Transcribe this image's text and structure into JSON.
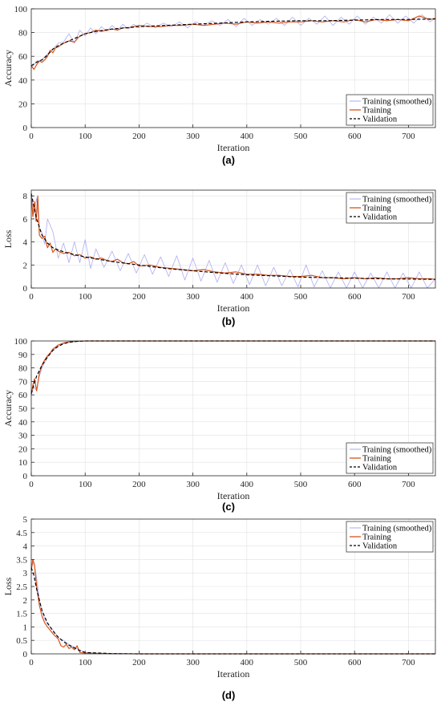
{
  "chart_data": [
    {
      "type": "line",
      "panel": "(a)",
      "xlabel": "Iteration",
      "ylabel": "Accuracy",
      "xlim": [
        0,
        750
      ],
      "ylim": [
        0,
        100
      ],
      "xticks": [
        0,
        100,
        200,
        300,
        400,
        500,
        600,
        700
      ],
      "yticks": [
        0,
        20,
        40,
        60,
        80,
        100
      ],
      "grid": true,
      "legend_position": "bottom-right",
      "series": [
        {
          "name": "Training (smoothed)",
          "color": "#9f9ff0",
          "x": [
            0,
            10,
            20,
            30,
            40,
            50,
            60,
            70,
            80,
            90,
            100,
            110,
            120,
            130,
            140,
            150,
            160,
            170,
            180,
            190,
            200,
            215,
            230,
            245,
            260,
            275,
            290,
            305,
            320,
            335,
            350,
            365,
            380,
            395,
            410,
            425,
            440,
            455,
            470,
            485,
            500,
            515,
            530,
            545,
            560,
            575,
            590,
            605,
            620,
            635,
            650,
            665,
            680,
            695,
            710,
            725,
            740,
            750
          ],
          "y": [
            50,
            56,
            57,
            62,
            66,
            71,
            72,
            79,
            71,
            82,
            77,
            84,
            79,
            85,
            81,
            86,
            82,
            87,
            83,
            87,
            84,
            88,
            84,
            88,
            85,
            89,
            84,
            89,
            86,
            90,
            86,
            91,
            85,
            92,
            86,
            91,
            87,
            92,
            86,
            93,
            86,
            92,
            87,
            94,
            86,
            93,
            87,
            94,
            87,
            93,
            88,
            95,
            88,
            94,
            88,
            95,
            89,
            92
          ]
        },
        {
          "name": "Training",
          "color": "#d95319",
          "x": [
            0,
            5,
            10,
            15,
            20,
            25,
            30,
            35,
            40,
            45,
            50,
            60,
            70,
            80,
            90,
            100,
            110,
            120,
            130,
            140,
            150,
            160,
            170,
            180,
            190,
            200,
            220,
            240,
            260,
            280,
            300,
            320,
            340,
            360,
            380,
            400,
            420,
            440,
            460,
            480,
            500,
            520,
            540,
            560,
            580,
            600,
            620,
            640,
            660,
            680,
            700,
            720,
            740,
            750
          ],
          "y": [
            52,
            49,
            53,
            56,
            55,
            57,
            60,
            65,
            63,
            67,
            68,
            71,
            73,
            72,
            77,
            79,
            80,
            82,
            81,
            82,
            83,
            82,
            84,
            84,
            85,
            86,
            85,
            85,
            86,
            86,
            87,
            86,
            87,
            88,
            87,
            89,
            88,
            89,
            88,
            89,
            89,
            90,
            89,
            90,
            89,
            91,
            89,
            91,
            90,
            91,
            90,
            94,
            91,
            92
          ]
        },
        {
          "name": "Validation",
          "color": "#000000",
          "dashed": true,
          "x": [
            0,
            10,
            20,
            30,
            40,
            50,
            60,
            80,
            100,
            120,
            150,
            200,
            250,
            300,
            350,
            400,
            450,
            500,
            550,
            600,
            650,
            700,
            750
          ],
          "y": [
            52,
            55,
            57,
            61,
            66,
            69,
            71,
            75,
            79,
            81,
            83,
            85,
            86,
            87,
            88,
            89,
            89.5,
            90,
            90,
            90.5,
            91,
            91,
            91.5
          ]
        }
      ]
    },
    {
      "type": "line",
      "panel": "(b)",
      "xlabel": "Iteration",
      "ylabel": "Loss",
      "xlim": [
        0,
        750
      ],
      "ylim": [
        0,
        8.5
      ],
      "xticks": [
        0,
        100,
        200,
        300,
        400,
        500,
        600,
        700
      ],
      "yticks": [
        0,
        2,
        4,
        6,
        8
      ],
      "grid": true,
      "legend_position": "top-right",
      "series": [
        {
          "name": "Training (smoothed)",
          "color": "#9f9ff0",
          "x": [
            0,
            5,
            10,
            15,
            20,
            25,
            30,
            40,
            50,
            60,
            70,
            80,
            90,
            100,
            110,
            120,
            135,
            150,
            165,
            180,
            195,
            210,
            225,
            240,
            255,
            270,
            285,
            300,
            315,
            330,
            345,
            360,
            375,
            390,
            405,
            420,
            435,
            450,
            465,
            480,
            495,
            510,
            525,
            540,
            555,
            570,
            585,
            600,
            615,
            630,
            645,
            660,
            675,
            690,
            705,
            720,
            735,
            750
          ],
          "y": [
            8.2,
            6.5,
            7.8,
            5.0,
            4.8,
            3.8,
            6.0,
            4.9,
            2.6,
            3.9,
            2.2,
            4.0,
            2.2,
            4.2,
            1.7,
            3.4,
            1.8,
            3.2,
            1.5,
            3.0,
            1.3,
            2.9,
            1.2,
            2.7,
            1.0,
            2.8,
            0.7,
            2.6,
            0.6,
            2.4,
            0.5,
            2.2,
            0.4,
            2.0,
            0.3,
            2.0,
            0.2,
            1.8,
            0.2,
            1.6,
            0.1,
            2.0,
            0.1,
            1.5,
            0.0,
            1.4,
            0.0,
            1.4,
            0.0,
            1.3,
            0.0,
            1.4,
            0.0,
            1.3,
            0.0,
            1.4,
            0.0,
            0.8
          ]
        },
        {
          "name": "Training",
          "color": "#d95319",
          "x": [
            0,
            3,
            6,
            9,
            12,
            15,
            20,
            25,
            30,
            35,
            40,
            45,
            50,
            60,
            70,
            80,
            90,
            100,
            110,
            120,
            130,
            140,
            150,
            160,
            170,
            180,
            190,
            200,
            220,
            240,
            260,
            280,
            300,
            320,
            340,
            360,
            380,
            400,
            420,
            440,
            460,
            480,
            500,
            520,
            540,
            560,
            580,
            600,
            620,
            640,
            660,
            680,
            700,
            720,
            740,
            750
          ],
          "y": [
            8.1,
            6.2,
            7.5,
            5.8,
            8.0,
            4.6,
            4.3,
            4.5,
            3.5,
            3.9,
            3.1,
            3.4,
            3.2,
            3.0,
            3.1,
            2.8,
            2.9,
            2.6,
            2.7,
            2.5,
            2.6,
            2.4,
            2.3,
            2.5,
            2.2,
            2.1,
            2.3,
            1.9,
            2.0,
            1.8,
            1.7,
            1.6,
            1.5,
            1.6,
            1.4,
            1.3,
            1.4,
            1.2,
            1.2,
            1.1,
            1.1,
            1.0,
            1.0,
            1.1,
            0.9,
            0.9,
            0.8,
            0.9,
            0.8,
            0.9,
            0.8,
            0.8,
            0.9,
            0.8,
            0.8,
            0.75
          ]
        },
        {
          "name": "Validation",
          "color": "#000000",
          "dashed": true,
          "x": [
            0,
            10,
            20,
            30,
            40,
            50,
            70,
            100,
            150,
            200,
            250,
            300,
            350,
            400,
            450,
            500,
            550,
            600,
            650,
            700,
            750
          ],
          "y": [
            8.2,
            6.0,
            4.6,
            3.9,
            3.5,
            3.3,
            3.0,
            2.7,
            2.3,
            2.0,
            1.7,
            1.5,
            1.3,
            1.15,
            1.05,
            0.95,
            0.9,
            0.85,
            0.8,
            0.78,
            0.75
          ]
        }
      ]
    },
    {
      "type": "line",
      "panel": "(c)",
      "xlabel": "Iteration",
      "ylabel": "Accuracy",
      "xlim": [
        0,
        750
      ],
      "ylim": [
        0,
        100
      ],
      "xticks": [
        0,
        100,
        200,
        300,
        400,
        500,
        600,
        700
      ],
      "yticks": [
        0,
        10,
        20,
        30,
        40,
        50,
        60,
        70,
        80,
        90,
        100
      ],
      "grid": true,
      "legend_position": "bottom-right",
      "series": [
        {
          "name": "Training (smoothed)",
          "color": "#9f9ff0",
          "x": [
            0,
            5,
            10,
            15,
            20,
            25,
            30,
            40,
            50,
            60,
            70,
            80,
            90,
            100,
            150,
            200,
            300,
            400,
            500,
            600,
            700,
            750
          ],
          "y": [
            60,
            66,
            63,
            74,
            80,
            84,
            88,
            93,
            96,
            98,
            99,
            99.5,
            99.8,
            100,
            100,
            100,
            100,
            100,
            100,
            100,
            100,
            100
          ]
        },
        {
          "name": "Training",
          "color": "#d95319",
          "x": [
            0,
            3,
            6,
            10,
            15,
            20,
            25,
            30,
            35,
            40,
            50,
            60,
            70,
            80,
            90,
            100,
            150,
            200,
            300,
            400,
            500,
            600,
            700,
            750
          ],
          "y": [
            60,
            67,
            72,
            63,
            76,
            82,
            86,
            89,
            91,
            94,
            97,
            98.5,
            99.3,
            99.6,
            99.8,
            100,
            100,
            100,
            100,
            100,
            100,
            100,
            100,
            100
          ]
        },
        {
          "name": "Validation",
          "color": "#000000",
          "dashed": true,
          "x": [
            0,
            5,
            10,
            20,
            30,
            40,
            50,
            60,
            70,
            80,
            90,
            100,
            150,
            200,
            300,
            400,
            500,
            600,
            700,
            750
          ],
          "y": [
            61,
            68,
            74,
            82,
            88,
            93,
            96,
            98,
            99,
            99.5,
            99.8,
            100,
            100,
            100,
            100,
            100,
            100,
            100,
            100,
            100
          ]
        }
      ]
    },
    {
      "type": "line",
      "panel": "(d)",
      "xlabel": "Iteration",
      "ylabel": "Loss",
      "xlim": [
        0,
        750
      ],
      "ylim": [
        0,
        5
      ],
      "xticks": [
        0,
        100,
        200,
        300,
        400,
        500,
        600,
        700
      ],
      "yticks": [
        0,
        0.5,
        1,
        1.5,
        2,
        2.5,
        3,
        3.5,
        4,
        4.5,
        5
      ],
      "grid": true,
      "legend_position": "top-right",
      "series": [
        {
          "name": "Training (smoothed)",
          "color": "#9f9ff0",
          "x": [
            0,
            5,
            10,
            15,
            20,
            25,
            30,
            40,
            50,
            60,
            70,
            80,
            90,
            100,
            120,
            150,
            200,
            300,
            400,
            500,
            600,
            700,
            750
          ],
          "y": [
            3.2,
            3.4,
            2.8,
            2.0,
            1.6,
            1.3,
            1.1,
            0.9,
            0.6,
            0.5,
            0.35,
            0.25,
            0.15,
            0.05,
            0.02,
            0.01,
            0.0,
            0.0,
            0.0,
            0.0,
            0.0,
            0.0,
            0.0
          ]
        },
        {
          "name": "Training",
          "color": "#d95319",
          "x": [
            0,
            3,
            6,
            10,
            15,
            20,
            25,
            30,
            40,
            50,
            55,
            60,
            65,
            70,
            75,
            80,
            85,
            90,
            95,
            100,
            120,
            150,
            200,
            300,
            400,
            500,
            600,
            700,
            750
          ],
          "y": [
            3.1,
            3.5,
            3.3,
            2.5,
            1.8,
            1.4,
            1.15,
            1.0,
            0.75,
            0.55,
            0.3,
            0.25,
            0.35,
            0.2,
            0.25,
            0.15,
            0.3,
            0.05,
            0.04,
            0.03,
            0.02,
            0.01,
            0.0,
            0.0,
            0.0,
            0.0,
            0.0,
            0.0,
            0.0
          ]
        },
        {
          "name": "Validation",
          "color": "#000000",
          "dashed": true,
          "x": [
            0,
            5,
            10,
            20,
            30,
            40,
            50,
            60,
            70,
            80,
            90,
            100,
            150,
            200,
            300,
            400,
            500,
            600,
            700,
            750
          ],
          "y": [
            3.2,
            2.9,
            2.4,
            1.6,
            1.15,
            0.85,
            0.62,
            0.45,
            0.32,
            0.22,
            0.12,
            0.05,
            0.01,
            0.0,
            0.0,
            0.0,
            0.0,
            0.0,
            0.0,
            0.0
          ]
        }
      ]
    }
  ]
}
